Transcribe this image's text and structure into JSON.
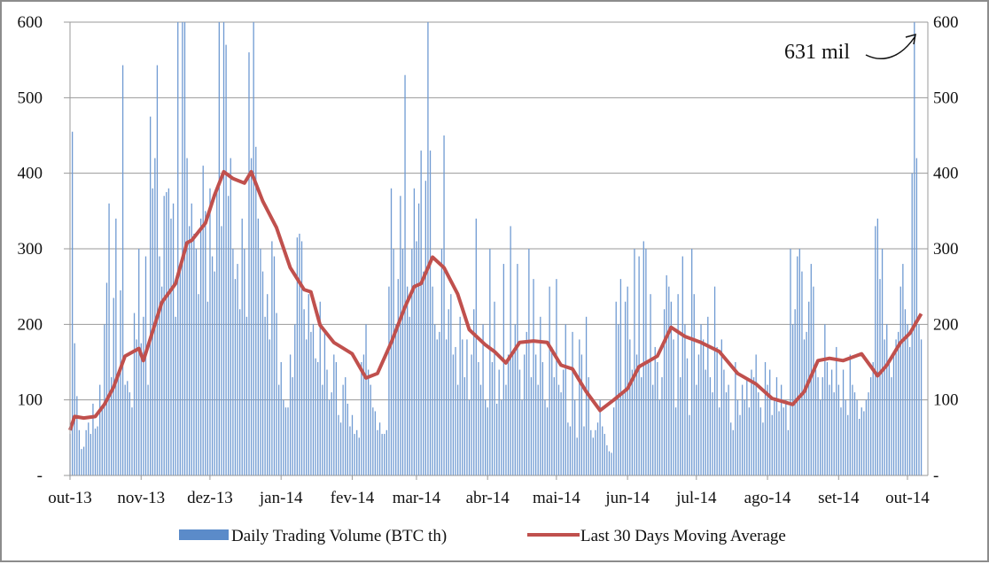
{
  "chart_data": {
    "type": "bar+line",
    "title": "",
    "ylim": [
      0,
      600
    ],
    "yticks": [
      0,
      100,
      200,
      300,
      400,
      500,
      600
    ],
    "ytick_labels": [
      "-",
      "100",
      "200",
      "300",
      "400",
      "500",
      "600"
    ],
    "x_start": "2013-10-01",
    "x_tick_labels": [
      "out-13",
      "nov-13",
      "dez-13",
      "jan-14",
      "fev-14",
      "mar-14",
      "abr-14",
      "mai-14",
      "jun-14",
      "jul-14",
      "ago-14",
      "set-14",
      "out-14"
    ],
    "x_tick_days": [
      0,
      31,
      61,
      92,
      123,
      151,
      182,
      212,
      243,
      273,
      304,
      335,
      365
    ],
    "grid": "horizontal",
    "legend_position": "bottom",
    "annotation": {
      "text": "631 mil",
      "target_day": 368,
      "target_value": 631
    },
    "series": [
      {
        "name": "Daily Trading Volume (BTC th)",
        "type": "bar",
        "color": "#5b8bc9",
        "values": [
          55,
          455,
          175,
          105,
          60,
          35,
          38,
          60,
          70,
          55,
          95,
          62,
          65,
          120,
          90,
          200,
          255,
          360,
          130,
          235,
          340,
          135,
          245,
          543,
          120,
          125,
          110,
          90,
          215,
          180,
          300,
          175,
          210,
          290,
          120,
          475,
          380,
          420,
          543,
          290,
          250,
          370,
          375,
          380,
          340,
          360,
          210,
          600,
          280,
          600,
          600,
          420,
          330,
          360,
          320,
          300,
          240,
          340,
          410,
          350,
          230,
          380,
          290,
          270,
          380,
          600,
          330,
          600,
          570,
          370,
          420,
          300,
          260,
          280,
          220,
          340,
          300,
          210,
          560,
          420,
          600,
          435,
          340,
          300,
          270,
          210,
          240,
          180,
          310,
          290,
          215,
          120,
          150,
          100,
          90,
          90,
          160,
          130,
          200,
          315,
          320,
          310,
          220,
          180,
          240,
          190,
          200,
          155,
          150,
          230,
          120,
          190,
          140,
          100,
          110,
          160,
          150,
          80,
          70,
          120,
          130,
          95,
          65,
          80,
          55,
          60,
          50,
          150,
          160,
          200,
          140,
          120,
          90,
          85,
          60,
          70,
          55,
          55,
          60,
          250,
          380,
          300,
          200,
          260,
          370,
          300,
          530,
          250,
          210,
          300,
          380,
          310,
          360,
          430,
          270,
          390,
          600,
          430,
          250,
          200,
          180,
          190,
          300,
          450,
          180,
          220,
          240,
          160,
          170,
          120,
          210,
          180,
          130,
          180,
          100,
          160,
          220,
          340,
          150,
          120,
          200,
          100,
          90,
          300,
          150,
          230,
          95,
          140,
          100,
          280,
          120,
          160,
          330,
          160,
          200,
          280,
          140,
          100,
          160,
          190,
          300,
          130,
          260,
          160,
          120,
          210,
          150,
          100,
          90,
          250,
          170,
          130,
          260,
          120,
          110,
          140,
          200,
          70,
          65,
          190,
          100,
          50,
          180,
          160,
          65,
          210,
          130,
          60,
          50,
          60,
          70,
          100,
          65,
          55,
          40,
          32,
          30,
          90,
          230,
          200,
          260,
          110,
          230,
          250,
          180,
          140,
          300,
          160,
          290,
          130,
          310,
          300,
          150,
          240,
          120,
          170,
          150,
          100,
          130,
          220,
          265,
          250,
          230,
          180,
          90,
          240,
          130,
          290,
          200,
          155,
          80,
          300,
          240,
          120,
          160,
          200,
          180,
          140,
          210,
          130,
          110,
          250,
          170,
          90,
          180,
          140,
          110,
          120,
          70,
          60,
          150,
          100,
          80,
          120,
          100,
          130,
          90,
          140,
          130,
          160,
          110,
          90,
          70,
          150,
          120,
          140,
          80,
          100,
          130,
          85,
          120,
          90,
          100,
          60,
          300,
          200,
          220,
          290,
          300,
          270,
          180,
          190,
          230,
          280,
          250,
          140,
          130,
          100,
          130,
          200,
          150,
          120,
          140,
          110,
          170,
          120,
          90,
          140,
          100,
          80,
          160,
          120,
          110,
          100,
          75,
          90,
          85,
          100,
          110,
          130,
          150,
          330,
          340,
          260,
          300,
          180,
          200,
          150,
          130,
          160,
          180,
          190,
          250,
          280,
          220,
          200,
          170,
          400,
          631,
          420,
          200,
          180
        ]
      },
      {
        "name": "Last 30 Days Moving Average",
        "type": "line",
        "color": "#c0504d",
        "points": [
          [
            0,
            60
          ],
          [
            2,
            78
          ],
          [
            6,
            76
          ],
          [
            11,
            78
          ],
          [
            15,
            94
          ],
          [
            19,
            117
          ],
          [
            24,
            158
          ],
          [
            30,
            168
          ],
          [
            32,
            152
          ],
          [
            40,
            229
          ],
          [
            46,
            254
          ],
          [
            51,
            308
          ],
          [
            53,
            311
          ],
          [
            59,
            334
          ],
          [
            63,
            371
          ],
          [
            67,
            402
          ],
          [
            71,
            393
          ],
          [
            76,
            387
          ],
          [
            79,
            402
          ],
          [
            84,
            363
          ],
          [
            90,
            328
          ],
          [
            96,
            275
          ],
          [
            102,
            246
          ],
          [
            105,
            243
          ],
          [
            109,
            199
          ],
          [
            115,
            176
          ],
          [
            123,
            161
          ],
          [
            129,
            129
          ],
          [
            134,
            135
          ],
          [
            140,
            176
          ],
          [
            146,
            223
          ],
          [
            150,
            250
          ],
          [
            153,
            254
          ],
          [
            158,
            289
          ],
          [
            163,
            275
          ],
          [
            169,
            240
          ],
          [
            174,
            193
          ],
          [
            181,
            173
          ],
          [
            185,
            164
          ],
          [
            190,
            149
          ],
          [
            196,
            176
          ],
          [
            202,
            178
          ],
          [
            208,
            176
          ],
          [
            214,
            146
          ],
          [
            219,
            141
          ],
          [
            225,
            111
          ],
          [
            231,
            86
          ],
          [
            237,
            100
          ],
          [
            243,
            115
          ],
          [
            248,
            144
          ],
          [
            256,
            158
          ],
          [
            262,
            196
          ],
          [
            268,
            184
          ],
          [
            275,
            176
          ],
          [
            283,
            164
          ],
          [
            291,
            135
          ],
          [
            299,
            121
          ],
          [
            306,
            102
          ],
          [
            315,
            94
          ],
          [
            320,
            111
          ],
          [
            326,
            152
          ],
          [
            331,
            155
          ],
          [
            337,
            152
          ],
          [
            345,
            161
          ],
          [
            352,
            132
          ],
          [
            356,
            146
          ],
          [
            362,
            176
          ],
          [
            366,
            188
          ],
          [
            371,
            214
          ]
        ]
      }
    ]
  }
}
